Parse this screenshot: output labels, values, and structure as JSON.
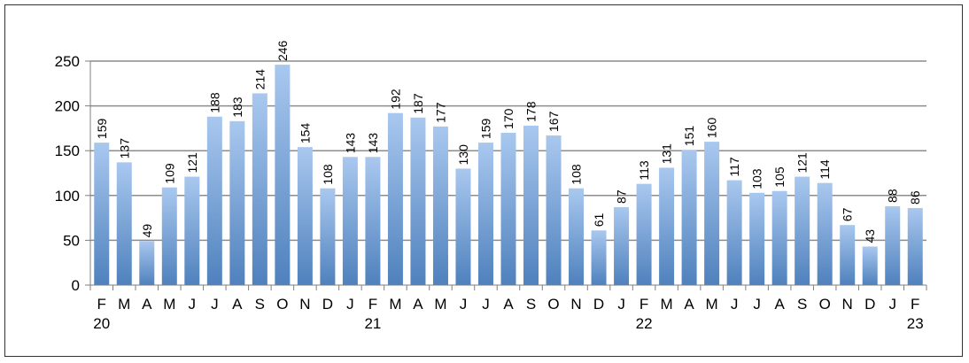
{
  "chart_data": {
    "type": "bar",
    "title": "",
    "xlabel": "",
    "ylabel": "",
    "ylim": [
      0,
      250
    ],
    "yticks": [
      0,
      50,
      100,
      150,
      200,
      250
    ],
    "grid": true,
    "legend": "none",
    "categories": [
      "F",
      "M",
      "A",
      "M",
      "J",
      "J",
      "A",
      "S",
      "O",
      "N",
      "D",
      "J",
      "F",
      "M",
      "A",
      "M",
      "J",
      "J",
      "A",
      "S",
      "O",
      "N",
      "D",
      "J",
      "F",
      "M",
      "A",
      "M",
      "J",
      "J",
      "A",
      "S",
      "O",
      "N",
      "D",
      "J",
      "F"
    ],
    "year_labels": [
      {
        "index": 0,
        "label": "20"
      },
      {
        "index": 12,
        "label": "21"
      },
      {
        "index": 24,
        "label": "22"
      },
      {
        "index": 36,
        "label": "23"
      }
    ],
    "values": [
      159,
      137,
      49,
      109,
      121,
      188,
      183,
      214,
      246,
      154,
      108,
      143,
      143,
      192,
      187,
      177,
      130,
      159,
      170,
      178,
      167,
      108,
      61,
      87,
      113,
      131,
      151,
      160,
      117,
      103,
      105,
      121,
      114,
      67,
      43,
      88,
      86
    ],
    "colors": {
      "bar_top": "#a9c8ef",
      "bar_bottom": "#4f81bd",
      "grid": "#8c8c8c",
      "axis": "#7f7f7f"
    }
  }
}
